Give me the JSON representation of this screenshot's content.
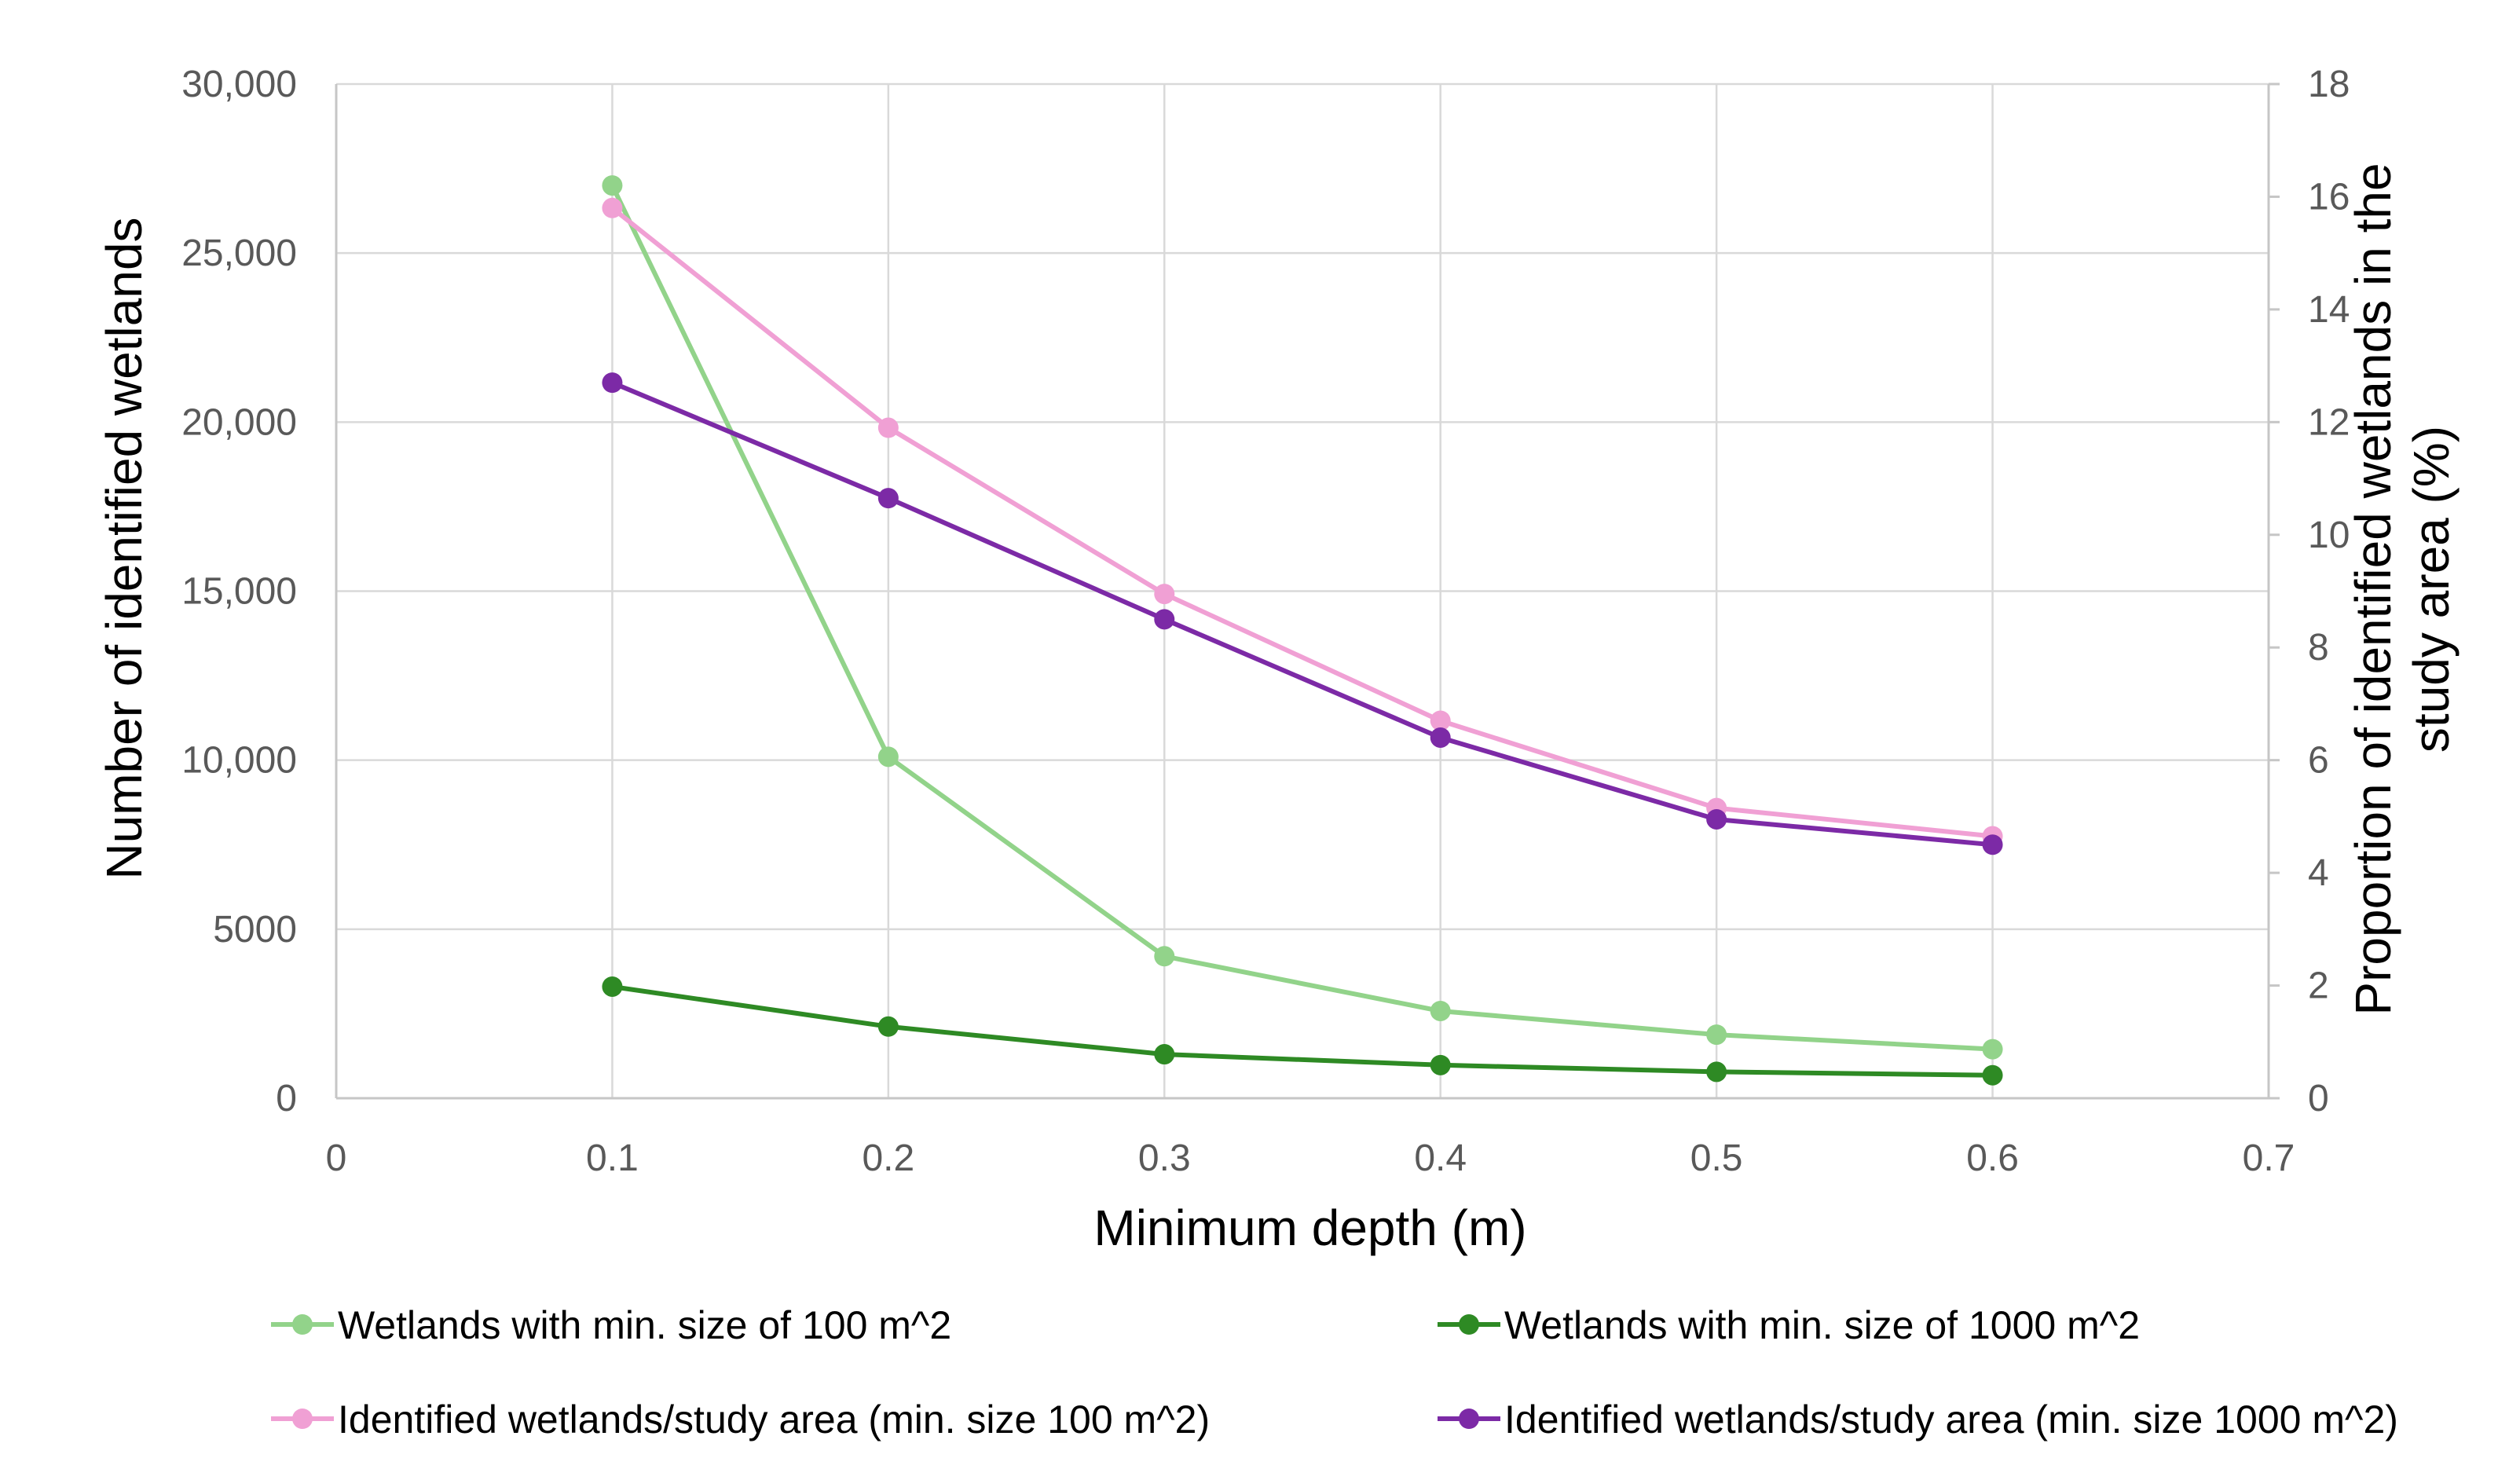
{
  "chart_data": {
    "type": "line",
    "title": "",
    "xlabel": "Minimum depth (m)",
    "ylabel": "Number of  identified wetlands",
    "y2label": [
      "Proportion of identified wetlands in the",
      "study area (%)"
    ],
    "xlim": [
      0,
      0.7
    ],
    "ylim": [
      0,
      30000
    ],
    "y2lim": [
      0,
      18
    ],
    "x_ticks": [
      0,
      0.1,
      0.2,
      0.3,
      0.4,
      0.5,
      0.6,
      0.7
    ],
    "x_tick_labels": [
      "0",
      "0.1",
      "0.2",
      "0.3",
      "0.4",
      "0.5",
      "0.6",
      "0.7"
    ],
    "y_ticks": [
      0,
      5000,
      10000,
      15000,
      20000,
      25000,
      30000
    ],
    "y_tick_labels": [
      "0",
      "5000",
      "10,000",
      "15,000",
      "20,000",
      "25,000",
      "30,000"
    ],
    "y2_ticks": [
      0,
      2,
      4,
      6,
      8,
      10,
      12,
      14,
      16,
      18
    ],
    "y2_tick_labels": [
      "0",
      "2",
      "4",
      "6",
      "8",
      "10",
      "12",
      "14",
      "16",
      "18"
    ],
    "grid": true,
    "legend_position": "bottom",
    "x": [
      0.1,
      0.2,
      0.3,
      0.4,
      0.5,
      0.6
    ],
    "series": [
      {
        "name": "Wetlands with min. size of 100 m^2",
        "axis": "left",
        "color": "#92d38a",
        "values": [
          27000,
          10100,
          4200,
          2580,
          1880,
          1450
        ]
      },
      {
        "name": "Wetlands with min. size of 1000 m^2",
        "axis": "left",
        "color": "#2e8a24",
        "values": [
          3300,
          2120,
          1300,
          980,
          780,
          680
        ]
      },
      {
        "name": "Identified wetlands/study area (min. size 100 m^2)",
        "axis": "right",
        "color": "#f0a0d4",
        "values": [
          15.8,
          11.9,
          8.95,
          6.7,
          5.15,
          4.65
        ]
      },
      {
        "name": "Identified wetlands/study area (min. size 1000 m^2)",
        "axis": "right",
        "color": "#7c2aa6",
        "values": [
          12.7,
          10.65,
          8.5,
          6.4,
          4.95,
          4.5
        ]
      }
    ]
  }
}
